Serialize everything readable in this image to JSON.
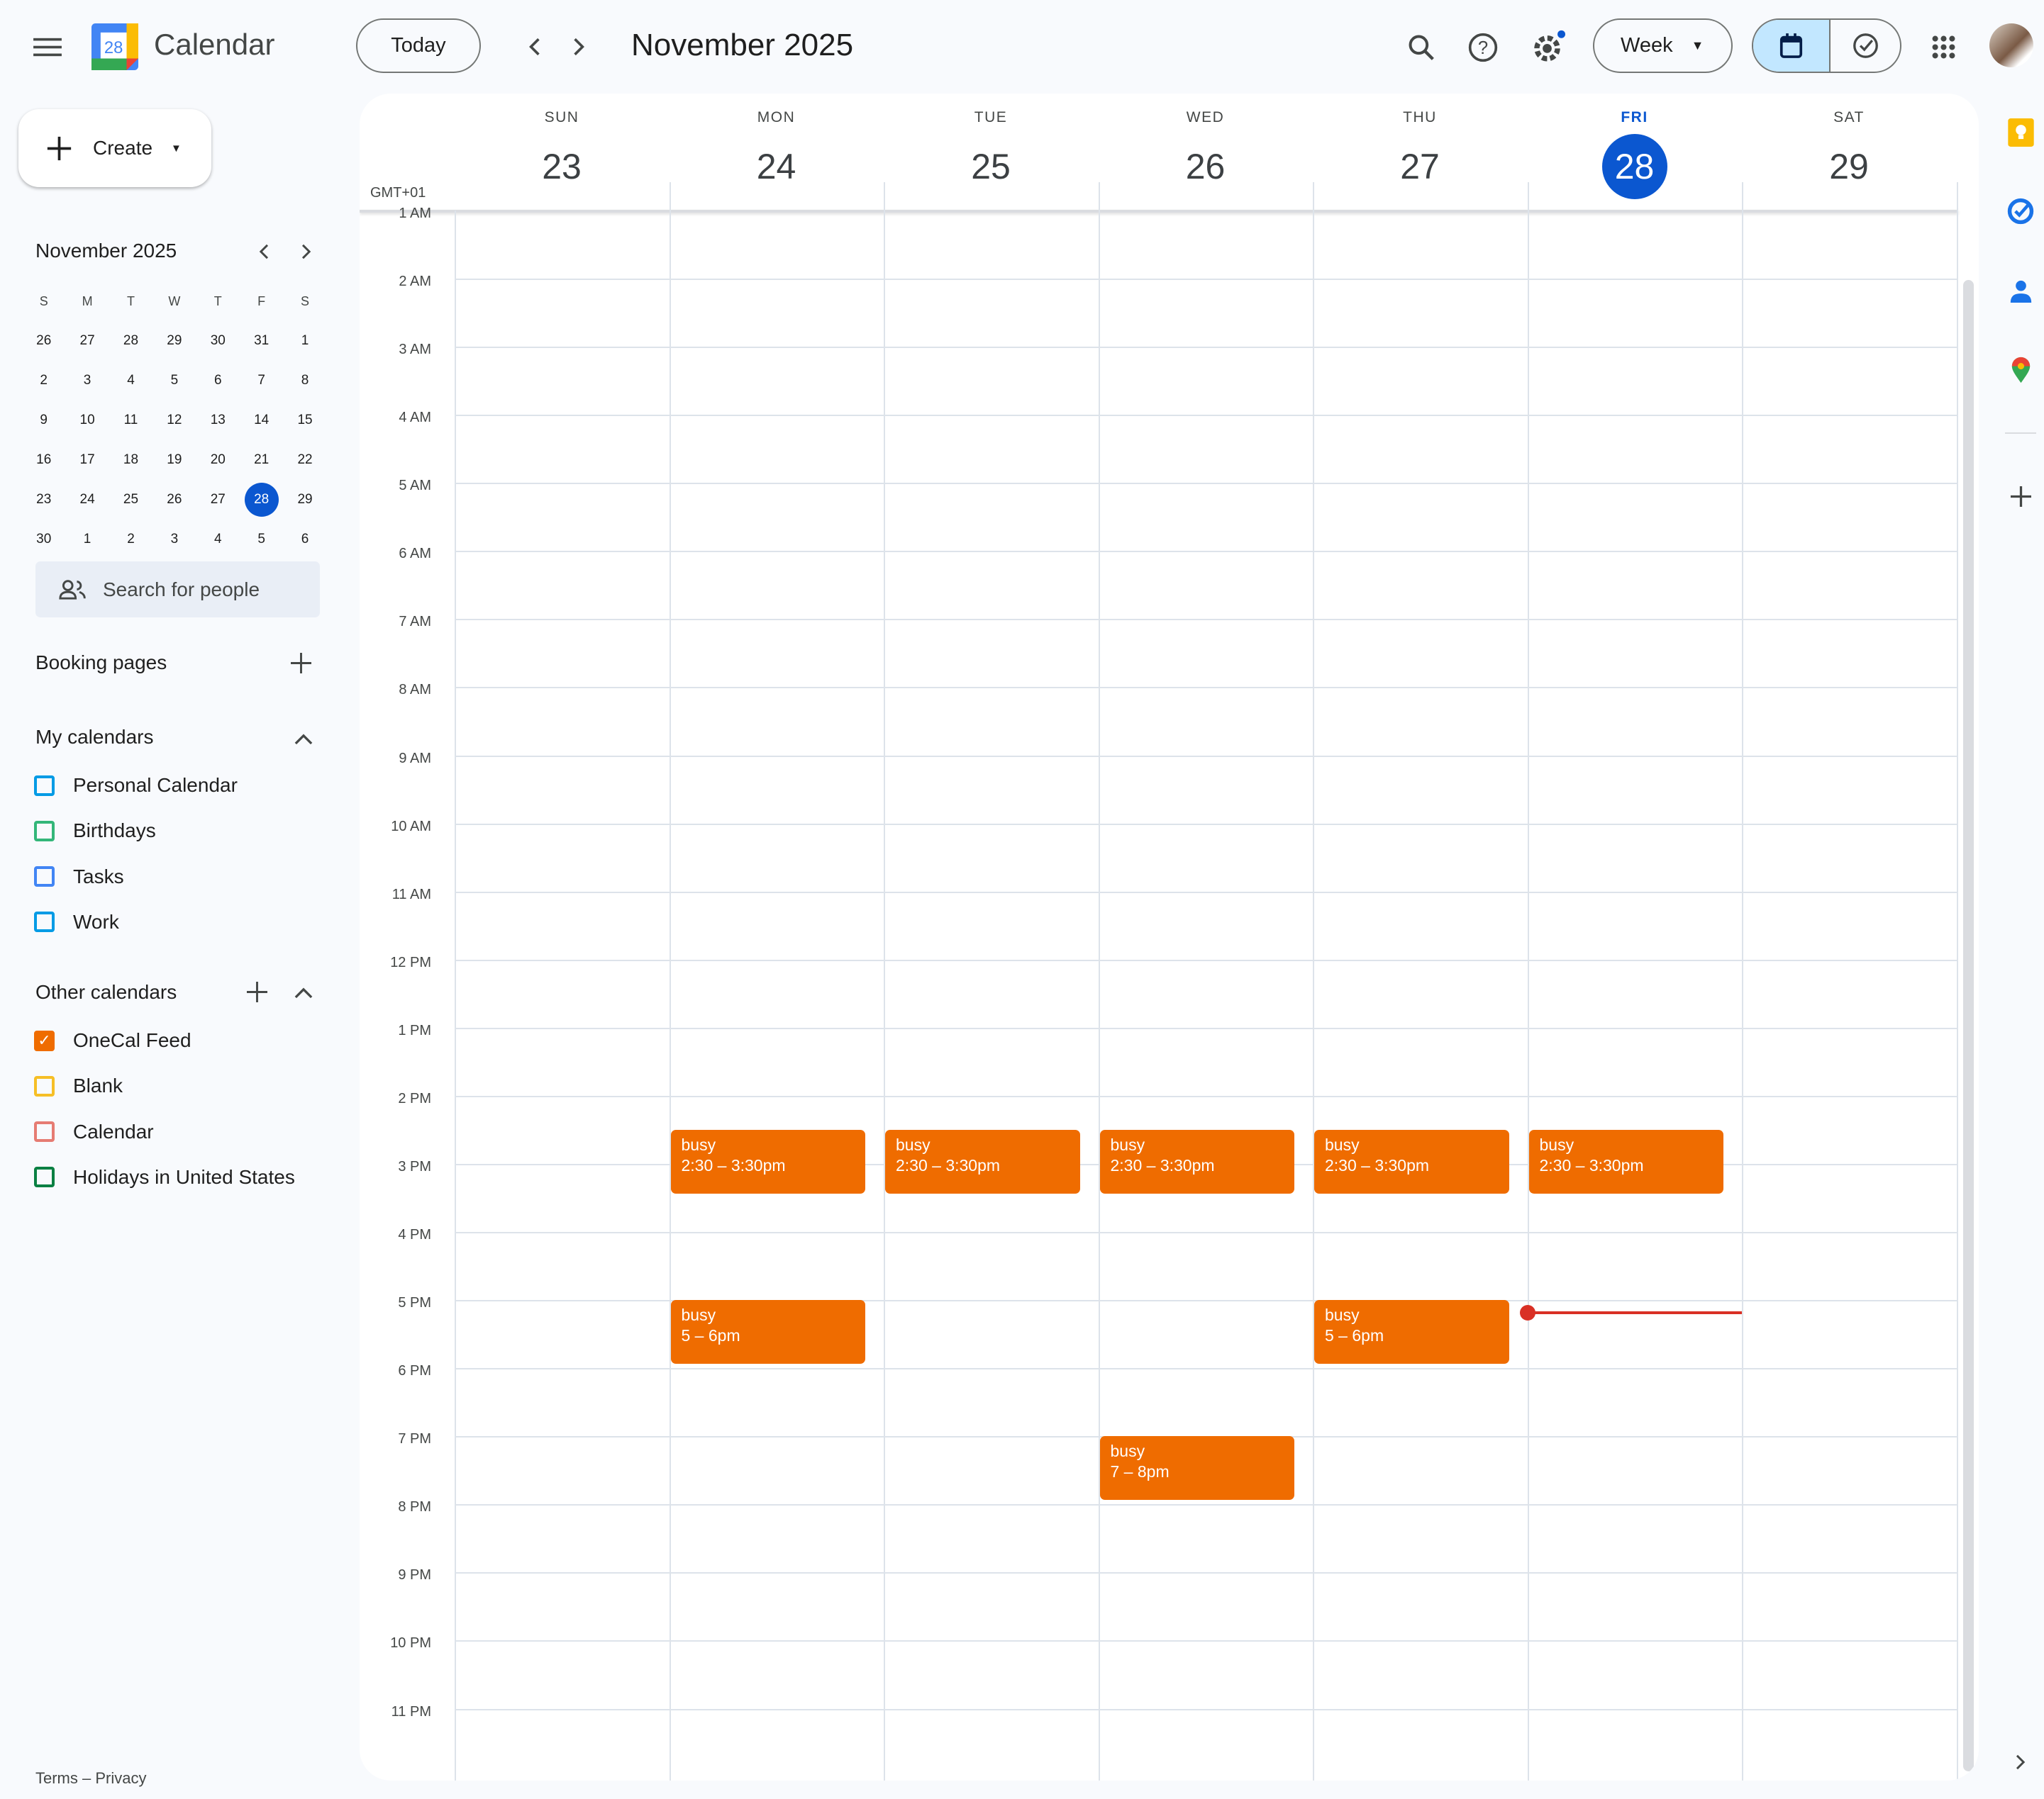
{
  "header": {
    "app_title": "Calendar",
    "logo_day": "28",
    "today_label": "Today",
    "period_title": "November 2025",
    "view_select": "Week"
  },
  "sidebar": {
    "create_label": "Create",
    "mini_calendar": {
      "title": "November 2025",
      "weekdays": [
        "S",
        "M",
        "T",
        "W",
        "T",
        "F",
        "S"
      ],
      "weeks": [
        [
          "26",
          "27",
          "28",
          "29",
          "30",
          "31",
          "1"
        ],
        [
          "2",
          "3",
          "4",
          "5",
          "6",
          "7",
          "8"
        ],
        [
          "9",
          "10",
          "11",
          "12",
          "13",
          "14",
          "15"
        ],
        [
          "16",
          "17",
          "18",
          "19",
          "20",
          "21",
          "22"
        ],
        [
          "23",
          "24",
          "25",
          "26",
          "27",
          "28",
          "29"
        ],
        [
          "30",
          "1",
          "2",
          "3",
          "4",
          "5",
          "6"
        ]
      ],
      "selected": "28"
    },
    "search_people_placeholder": "Search for people",
    "booking_pages": "Booking pages",
    "my_calendars": {
      "title": "My calendars",
      "items": [
        {
          "label": "Personal Calendar",
          "color": "#039be5",
          "checked": false
        },
        {
          "label": "Birthdays",
          "color": "#33b679",
          "checked": false
        },
        {
          "label": "Tasks",
          "color": "#4285f4",
          "checked": false
        },
        {
          "label": "Work",
          "color": "#039be5",
          "checked": false
        }
      ]
    },
    "other_calendars": {
      "title": "Other calendars",
      "items": [
        {
          "label": "OneCal Feed",
          "color": "#ef6c00",
          "checked": true
        },
        {
          "label": "Blank",
          "color": "#f6bf26",
          "checked": false
        },
        {
          "label": "Calendar",
          "color": "#e67c73",
          "checked": false
        },
        {
          "label": "Holidays in United States",
          "color": "#0b8043",
          "checked": false
        }
      ]
    },
    "footer": "Terms – Privacy"
  },
  "week": {
    "timezone": "GMT+01",
    "days": [
      {
        "dow": "SUN",
        "num": "23"
      },
      {
        "dow": "MON",
        "num": "24"
      },
      {
        "dow": "TUE",
        "num": "25"
      },
      {
        "dow": "WED",
        "num": "26"
      },
      {
        "dow": "THU",
        "num": "27"
      },
      {
        "dow": "FRI",
        "num": "28",
        "today": true
      },
      {
        "dow": "SAT",
        "num": "29"
      }
    ],
    "hours": [
      "1 AM",
      "2 AM",
      "3 AM",
      "4 AM",
      "5 AM",
      "6 AM",
      "7 AM",
      "8 AM",
      "9 AM",
      "10 AM",
      "11 AM",
      "12 PM",
      "1 PM",
      "2 PM",
      "3 PM",
      "4 PM",
      "5 PM",
      "6 PM",
      "7 PM",
      "8 PM",
      "9 PM",
      "10 PM",
      "11 PM"
    ],
    "events": [
      {
        "day": 1,
        "start": 14.5,
        "end": 15.5,
        "title": "busy",
        "time": "2:30 – 3:30pm"
      },
      {
        "day": 2,
        "start": 14.5,
        "end": 15.5,
        "title": "busy",
        "time": "2:30 – 3:30pm"
      },
      {
        "day": 3,
        "start": 14.5,
        "end": 15.5,
        "title": "busy",
        "time": "2:30 – 3:30pm"
      },
      {
        "day": 4,
        "start": 14.5,
        "end": 15.5,
        "title": "busy",
        "time": "2:30 – 3:30pm"
      },
      {
        "day": 5,
        "start": 14.5,
        "end": 15.5,
        "title": "busy",
        "time": "2:30 – 3:30pm"
      },
      {
        "day": 1,
        "start": 17,
        "end": 18,
        "title": "busy",
        "time": "5 – 6pm"
      },
      {
        "day": 4,
        "start": 17,
        "end": 18,
        "title": "busy",
        "time": "5 – 6pm"
      },
      {
        "day": 3,
        "start": 19,
        "end": 20,
        "title": "busy",
        "time": "7 – 8pm"
      }
    ],
    "now": {
      "day": 5,
      "hour": 17.17
    },
    "event_color": "#ef6c00",
    "now_color": "#d93025"
  },
  "side_panel": {
    "icons": [
      "keep-icon",
      "tasks-icon",
      "contacts-icon",
      "maps-icon",
      "add-icon"
    ]
  }
}
